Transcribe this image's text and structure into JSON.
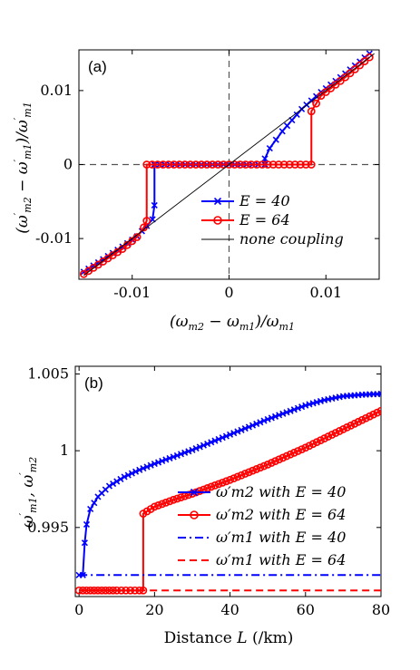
{
  "chart_data": [
    {
      "type": "line",
      "panel_label": "(a)",
      "xlabel": "(ωm2 − ωm1)/ωm1",
      "ylabel": "(ω′m2 − ω′m1)/ω′m1",
      "xlim": [
        -0.0155,
        0.0155
      ],
      "ylim": [
        -0.0155,
        0.0155
      ],
      "xticks": [
        -0.01,
        0,
        0.01
      ],
      "xtick_labels": [
        "-0.01",
        "0",
        "0.01"
      ],
      "yticks": [
        -0.01,
        0,
        0.01
      ],
      "ytick_labels": [
        "-0.01",
        "0",
        "0.01"
      ],
      "legend_position": "bottom-right",
      "grid": false,
      "reference_lines": "dashed lines at x=0 and y=0",
      "series": [
        {
          "name": "E = 40",
          "color": "#0000ff",
          "marker": "x",
          "x": [
            -0.015,
            -0.013,
            -0.011,
            -0.0095,
            -0.0085,
            -0.0079,
            -0.0077,
            -0.0077,
            -0.004,
            0.0,
            0.003,
            0.0037,
            0.0037,
            0.0042,
            0.0055,
            0.0075,
            0.0095,
            0.012,
            0.0145
          ],
          "y": [
            -0.0145,
            -0.0128,
            -0.0111,
            -0.0097,
            -0.0083,
            -0.0074,
            -0.0055,
            0.0,
            0.0,
            0.0,
            0.0,
            0.0,
            0.0008,
            0.0022,
            0.0045,
            0.0075,
            0.0098,
            0.0123,
            0.015
          ]
        },
        {
          "name": "E = 64",
          "color": "#ff0000",
          "marker": "o",
          "x": [
            -0.015,
            -0.013,
            -0.011,
            -0.0095,
            -0.0088,
            -0.0085,
            -0.0085,
            -0.004,
            0.0,
            0.004,
            0.0085,
            0.0085,
            0.0095,
            0.012,
            0.0145
          ],
          "y": [
            -0.0148,
            -0.0131,
            -0.0114,
            -0.0098,
            -0.0085,
            -0.0076,
            0.0,
            0.0,
            0.0,
            0.0,
            0.0,
            0.0072,
            0.0093,
            0.0118,
            0.0145
          ]
        },
        {
          "name": "none coupling",
          "color": "#000000",
          "marker": "none",
          "x": [
            -0.015,
            0.015
          ],
          "y": [
            -0.015,
            0.015
          ]
        }
      ]
    },
    {
      "type": "line",
      "panel_label": "(b)",
      "xlabel": "Distance L (/km)",
      "ylabel": "ω′m1, ω′m2",
      "xlim": [
        -1,
        80
      ],
      "ylim": [
        0.9905,
        1.0055
      ],
      "xticks": [
        0,
        20,
        40,
        60,
        80
      ],
      "xtick_labels": [
        "0",
        "20",
        "40",
        "60",
        "80"
      ],
      "yticks": [
        0.995,
        1.0,
        1.005
      ],
      "ytick_labels": [
        "0.995",
        "1",
        "1.005"
      ],
      "legend_position": "bottom-right",
      "grid": false,
      "series": [
        {
          "name": "ω′m2 with E = 40",
          "color": "#0000ff",
          "marker": "x",
          "style": "solid",
          "x": [
            0,
            1,
            1.5,
            2,
            3,
            5,
            8,
            12,
            16,
            20,
            25,
            30,
            35,
            40,
            45,
            50,
            55,
            60,
            65,
            70,
            75,
            80
          ],
          "y": [
            0.9919,
            0.9919,
            0.994,
            0.9952,
            0.9962,
            0.997,
            0.9977,
            0.9983,
            0.99875,
            0.99915,
            0.9996,
            1.00005,
            1.00055,
            1.00105,
            1.00155,
            1.00205,
            1.0025,
            1.00295,
            1.0033,
            1.00355,
            1.00365,
            1.0037
          ]
        },
        {
          "name": "ω′m2 with E = 64",
          "color": "#ff0000",
          "marker": "o",
          "style": "solid",
          "x": [
            0,
            5,
            10,
            16,
            17,
            17,
            20,
            25,
            30,
            35,
            40,
            45,
            50,
            55,
            60,
            65,
            70,
            75,
            80
          ],
          "y": [
            0.9909,
            0.9909,
            0.9909,
            0.9909,
            0.9909,
            0.9959,
            0.99635,
            0.9968,
            0.9972,
            0.99765,
            0.9981,
            0.9986,
            0.9991,
            0.99965,
            1.0002,
            1.0008,
            1.0014,
            1.002,
            1.0026
          ]
        },
        {
          "name": "ω′m1 with E = 40",
          "color": "#0000ff",
          "marker": "none",
          "style": "dash-dot",
          "x": [
            0,
            80
          ],
          "y": [
            0.9919,
            0.9919
          ]
        },
        {
          "name": "ω′m1 with E = 64",
          "color": "#ff0000",
          "marker": "none",
          "style": "dashed",
          "x": [
            0,
            80
          ],
          "y": [
            0.9909,
            0.9909
          ]
        }
      ]
    }
  ]
}
